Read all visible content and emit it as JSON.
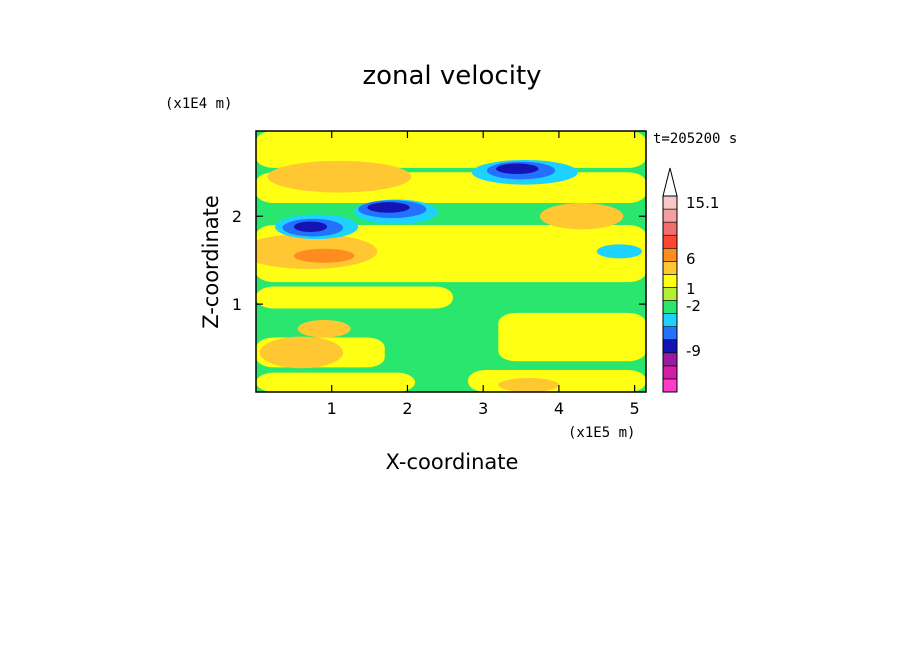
{
  "chart_data": {
    "type": "heatmap",
    "title": "zonal velocity",
    "xlabel": "X-coordinate",
    "ylabel": "Z-coordinate",
    "x_unit": "(x1E5 m)",
    "y_unit": "(x1E4 m)",
    "time_label": "t=205200 s",
    "xlim": [
      0,
      5.15
    ],
    "ylim": [
      0,
      2.97
    ],
    "x_ticks": [
      "1",
      "2",
      "3",
      "4",
      "5"
    ],
    "y_ticks": [
      "1",
      "2"
    ],
    "x_tick_values": [
      1,
      2,
      3,
      4,
      5
    ],
    "y_tick_values": [
      1,
      2
    ],
    "colorbar": {
      "labels": [
        "15.1",
        "6",
        "1",
        "-2",
        "-9"
      ],
      "label_values": [
        15.1,
        6,
        1,
        -2,
        -9
      ],
      "bin_colors": [
        "#ff3bc8",
        "#d01ea8",
        "#9b1aa0",
        "#1414b4",
        "#2470ff",
        "#1ed2ff",
        "#28e66e",
        "#b4f032",
        "#ffff14",
        "#ffc832",
        "#ff8c1e",
        "#ff4632",
        "#f06e6e",
        "#f5a0a0",
        "#f8c8c8"
      ],
      "top_arrow_color": "#ffffff"
    },
    "field": {
      "background_level_color": "#28e66e",
      "bands": [
        {
          "x": [
            0.0,
            2.1
          ],
          "z": [
            0.0,
            0.22
          ],
          "color": "#ffff14"
        },
        {
          "x": [
            0.0,
            1.7
          ],
          "z": [
            0.28,
            0.62
          ],
          "color": "#ffff14"
        },
        {
          "x": [
            0.0,
            2.6
          ],
          "z": [
            0.95,
            1.2
          ],
          "color": "#ffff14"
        },
        {
          "x": [
            0.0,
            5.15
          ],
          "z": [
            1.25,
            1.9
          ],
          "color": "#ffff14"
        },
        {
          "x": [
            0.0,
            5.15
          ],
          "z": [
            2.15,
            2.5
          ],
          "color": "#ffff14"
        },
        {
          "x": [
            0.0,
            5.15
          ],
          "z": [
            2.55,
            2.97
          ],
          "color": "#ffff14"
        },
        {
          "x": [
            2.8,
            5.15
          ],
          "z": [
            0.0,
            0.25
          ],
          "color": "#ffff14"
        },
        {
          "x": [
            3.2,
            5.15
          ],
          "z": [
            0.35,
            0.9
          ],
          "color": "#ffff14"
        }
      ],
      "blobs": [
        {
          "cx": 0.6,
          "cz": 0.45,
          "rx": 0.55,
          "rz": 0.18,
          "color": "#ffc832"
        },
        {
          "cx": 0.7,
          "cz": 1.6,
          "rx": 0.9,
          "rz": 0.2,
          "color": "#ffc832"
        },
        {
          "cx": 1.1,
          "cz": 2.45,
          "rx": 0.95,
          "rz": 0.18,
          "color": "#ffc832"
        },
        {
          "cx": 4.3,
          "cz": 2.0,
          "rx": 0.55,
          "rz": 0.15,
          "color": "#ffc832"
        },
        {
          "cx": 0.9,
          "cz": 0.72,
          "rx": 0.35,
          "rz": 0.1,
          "color": "#ffc832"
        },
        {
          "cx": 3.6,
          "cz": 0.08,
          "rx": 0.4,
          "rz": 0.08,
          "color": "#ffc832"
        },
        {
          "cx": 0.9,
          "cz": 1.55,
          "rx": 0.4,
          "rz": 0.08,
          "color": "#ff8c1e"
        },
        {
          "cx": 0.8,
          "cz": 1.88,
          "rx": 0.55,
          "rz": 0.14,
          "color": "#1ed2ff"
        },
        {
          "cx": 1.85,
          "cz": 2.05,
          "rx": 0.55,
          "rz": 0.14,
          "color": "#1ed2ff"
        },
        {
          "cx": 3.55,
          "cz": 2.5,
          "rx": 0.7,
          "rz": 0.14,
          "color": "#1ed2ff"
        },
        {
          "cx": 4.8,
          "cz": 1.6,
          "rx": 0.3,
          "rz": 0.08,
          "color": "#1ed2ff"
        },
        {
          "cx": 0.75,
          "cz": 1.87,
          "rx": 0.4,
          "rz": 0.1,
          "color": "#2470ff"
        },
        {
          "cx": 1.8,
          "cz": 2.08,
          "rx": 0.45,
          "rz": 0.1,
          "color": "#2470ff"
        },
        {
          "cx": 3.5,
          "cz": 2.52,
          "rx": 0.45,
          "rz": 0.1,
          "color": "#2470ff"
        },
        {
          "cx": 0.72,
          "cz": 1.88,
          "rx": 0.22,
          "rz": 0.06,
          "color": "#1414b4"
        },
        {
          "cx": 1.75,
          "cz": 2.1,
          "rx": 0.28,
          "rz": 0.06,
          "color": "#1414b4"
        },
        {
          "cx": 3.45,
          "cz": 2.54,
          "rx": 0.28,
          "rz": 0.06,
          "color": "#1414b4"
        }
      ]
    }
  }
}
